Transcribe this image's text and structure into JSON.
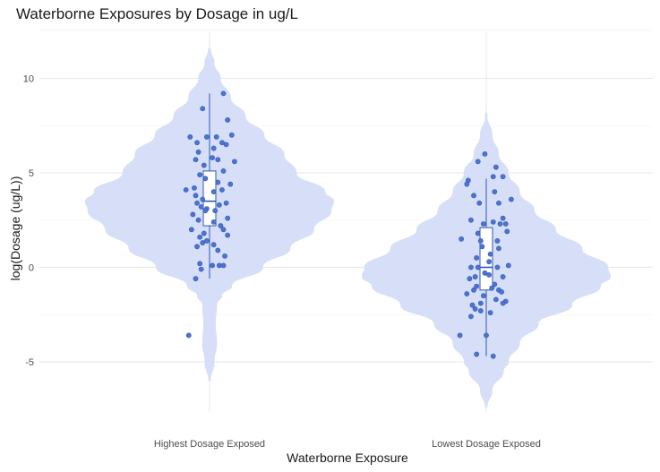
{
  "chart_data": {
    "type": "violin",
    "title": "Waterborne Exposures by Dosage in ug/L",
    "xlabel": "Waterborne Exposure",
    "ylabel": "log(Dosage (ug/L))",
    "categories": [
      "Highest Dosage Exposed",
      "Lowest Dosage Exposed"
    ],
    "ylim": [
      -7.8,
      12.4
    ],
    "yticks": [
      -5,
      0,
      5,
      10
    ],
    "grid": true,
    "legend": "none",
    "colors": {
      "violin": "#d6dff7",
      "point": "#4f74cf",
      "point_edge": "#2f57b8",
      "box": "#2f57b8"
    },
    "violins": [
      {
        "name": "Highest Dosage Exposed",
        "y_range": [
          -6.0,
          11.6
        ],
        "density_y": [
          -6.0,
          -5.0,
          -4.0,
          -3.0,
          -2.0,
          -1.5,
          -1.0,
          0.0,
          1.0,
          2.0,
          3.0,
          3.5,
          4.0,
          5.0,
          6.0,
          7.0,
          8.0,
          9.0,
          10.0,
          10.8,
          11.6
        ],
        "density_width": [
          0.01,
          0.04,
          0.06,
          0.05,
          0.06,
          0.1,
          0.18,
          0.43,
          0.65,
          0.84,
          0.98,
          1.0,
          0.93,
          0.7,
          0.6,
          0.44,
          0.29,
          0.17,
          0.09,
          0.04,
          0.01
        ]
      },
      {
        "name": "Lowest Dosage Exposed",
        "y_range": [
          -7.4,
          8.4
        ],
        "density_y": [
          -7.4,
          -6.5,
          -5.5,
          -5.0,
          -4.0,
          -3.0,
          -2.0,
          -1.0,
          -0.5,
          0.0,
          1.0,
          2.0,
          3.0,
          4.0,
          5.0,
          6.0,
          7.0,
          8.0,
          8.4
        ],
        "density_width": [
          0.01,
          0.05,
          0.14,
          0.18,
          0.27,
          0.42,
          0.69,
          0.92,
          1.0,
          0.98,
          0.77,
          0.56,
          0.39,
          0.27,
          0.18,
          0.1,
          0.05,
          0.01,
          0.0
        ]
      }
    ],
    "boxes": [
      {
        "name": "Highest Dosage Exposed",
        "min": -0.6,
        "q1": 2.2,
        "median": 3.5,
        "q3": 5.1,
        "max": 9.2
      },
      {
        "name": "Lowest Dosage Exposed",
        "min": -4.7,
        "q1": -1.2,
        "median": 0.0,
        "q3": 2.1,
        "max": 4.7
      }
    ],
    "series": [
      {
        "category": "Highest Dosage Exposed",
        "jitter": [
          -0.05,
          0.1,
          0.13,
          -0.09,
          -0.02,
          0.09,
          0.05,
          0.03,
          0.12,
          0.16,
          -0.08,
          0.02,
          -0.1,
          -0.14,
          0.06,
          0.18,
          -0.04,
          0.1,
          -0.07,
          -0.03,
          0.15,
          0.06,
          0.09,
          -0.11,
          0.03,
          -0.17,
          -0.1,
          -0.05,
          -0.09,
          0.07,
          -0.02,
          0.12,
          -0.06,
          0.04,
          -0.12,
          0.13,
          -0.08,
          0.08,
          0.1,
          -0.13,
          -0.04,
          -0.07,
          -0.02,
          0.13,
          0.03,
          -0.09,
          -0.05,
          0.06,
          0.11,
          0.02,
          0.07,
          -0.06,
          -0.1,
          0.1,
          -0.07,
          0.03,
          -0.03,
          -0.15
        ],
        "values": [
          8.4,
          9.2,
          7.8,
          6.6,
          6.9,
          6.6,
          6.9,
          6.3,
          6.5,
          7.0,
          6.1,
          5.8,
          5.7,
          6.9,
          5.7,
          5.6,
          5.4,
          5.1,
          4.9,
          4.7,
          4.4,
          4.5,
          4.1,
          4.2,
          4.0,
          4.1,
          3.8,
          3.6,
          3.4,
          3.3,
          3.1,
          3.4,
          3.2,
          3.0,
          2.8,
          2.6,
          2.5,
          2.2,
          2.0,
          2.0,
          1.8,
          1.6,
          1.4,
          1.7,
          1.2,
          1.1,
          1.3,
          0.9,
          0.6,
          0.1,
          0.1,
          -0.1,
          -0.6,
          0.1,
          0.2,
          2.4,
          3.0,
          -3.6
        ]
      },
      {
        "category": "Lowest Dosage Exposed",
        "jitter": [
          -0.01,
          -0.06,
          0.07,
          0.12,
          -0.13,
          0.05,
          -0.14,
          0.18,
          0.06,
          0.09,
          -0.09,
          -0.05,
          0.12,
          -0.11,
          -0.02,
          0.05,
          0.1,
          0.14,
          0.15,
          -0.06,
          -0.18,
          -0.04,
          0.08,
          -0.03,
          0.09,
          0.03,
          -0.07,
          0.02,
          0.16,
          -0.11,
          -0.06,
          0.08,
          -0.01,
          0.02,
          0.12,
          -0.08,
          -0.12,
          0.06,
          -0.07,
          0.04,
          0.09,
          -0.09,
          0.11,
          -0.14,
          -0.02,
          0.07,
          0.14,
          -0.04,
          0.12,
          -0.1,
          -0.08,
          -0.04,
          -0.11,
          0.03,
          -0.19,
          0.0,
          -0.07,
          0.05
        ],
        "values": [
          6.0,
          5.6,
          5.3,
          4.8,
          4.6,
          4.8,
          4.4,
          3.6,
          4.0,
          3.4,
          3.8,
          3.4,
          2.6,
          2.5,
          2.3,
          2.4,
          2.3,
          2.3,
          1.9,
          1.8,
          1.5,
          1.4,
          1.4,
          1.1,
          1.0,
          0.7,
          0.5,
          0.3,
          0.1,
          0.0,
          0.0,
          0.0,
          -0.3,
          -0.4,
          -0.5,
          -0.5,
          -0.6,
          -0.9,
          -1.0,
          -1.1,
          -1.2,
          -1.2,
          -1.3,
          -1.4,
          -1.5,
          -1.7,
          -1.8,
          -1.9,
          -1.9,
          -2.0,
          -2.2,
          -2.3,
          -2.6,
          -2.4,
          -3.6,
          -3.6,
          -4.6,
          -4.7
        ]
      }
    ]
  }
}
